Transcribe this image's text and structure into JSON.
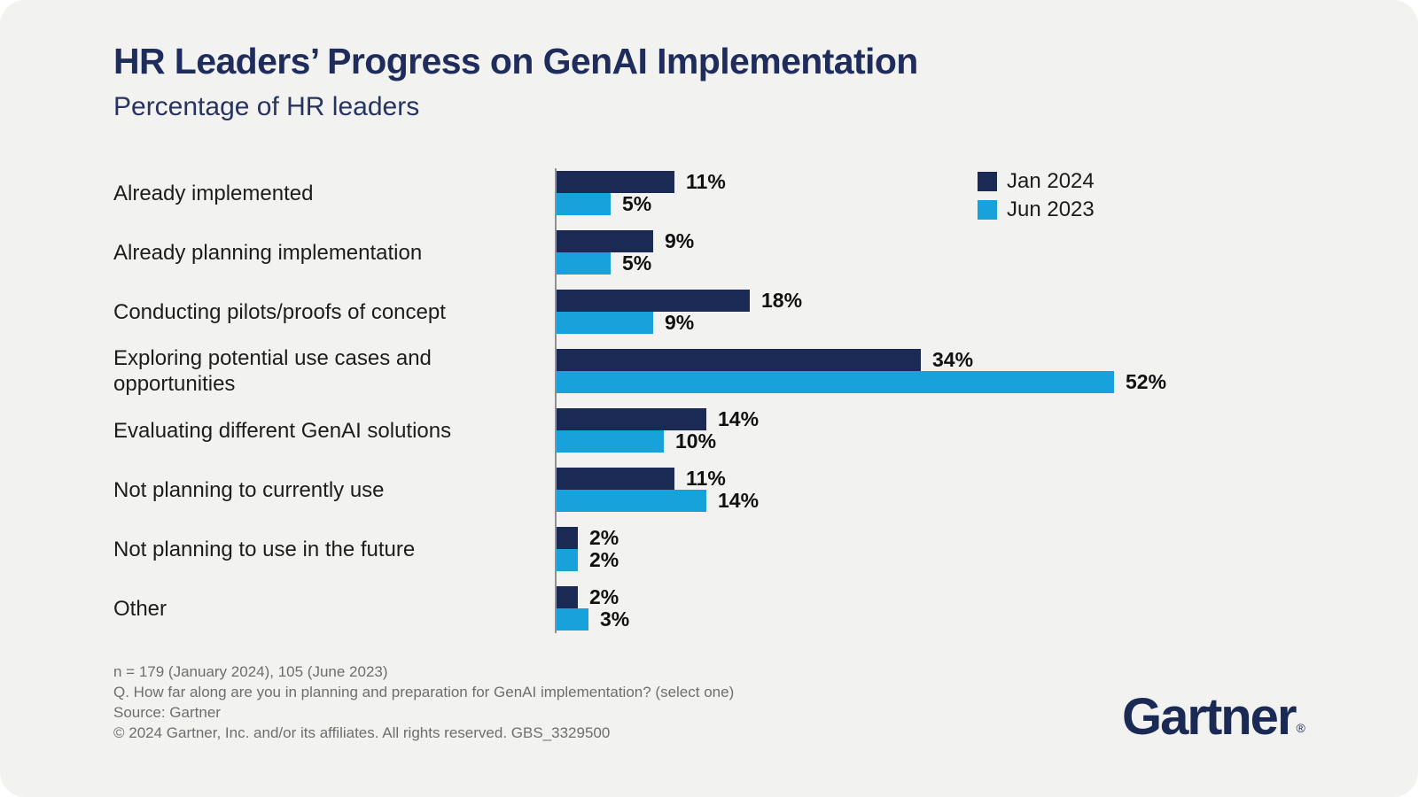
{
  "header": {
    "title": "HR Leaders’ Progress on GenAI Implementation",
    "subtitle": "Percentage of HR leaders"
  },
  "chart_data": {
    "type": "bar",
    "orientation": "horizontal",
    "title": "HR Leaders’ Progress on GenAI Implementation",
    "subtitle": "Percentage of HR leaders",
    "categories": [
      "Already implemented",
      "Already planning implementation",
      "Conducting pilots/proofs of concept",
      "Exploring potential use cases and opportunities",
      "Evaluating different GenAI solutions",
      "Not planning to currently use",
      "Not planning to use in the future",
      "Other"
    ],
    "series": [
      {
        "name": "Jan 2024",
        "color": "#1b2a55",
        "values": [
          11,
          9,
          18,
          34,
          14,
          11,
          2,
          2
        ]
      },
      {
        "name": "Jun 2023",
        "color": "#17a2dc",
        "values": [
          5,
          5,
          9,
          52,
          10,
          14,
          2,
          3
        ]
      }
    ],
    "value_suffix": "%",
    "xlim": [
      0,
      55
    ],
    "grid": false,
    "legend_position": "top-right"
  },
  "footer": {
    "lines": [
      "n = 179 (January 2024), 105 (June 2023)",
      "Q. How far along are you in planning and preparation for GenAI implementation? (select one)",
      "Source: Gartner",
      "© 2024 Gartner, Inc. and/or its affiliates. All rights reserved. GBS_3329500"
    ]
  },
  "branding": {
    "logo_text": "Gartner",
    "registered_mark": "®"
  },
  "colors": {
    "background": "#f2f2f0",
    "title_navy": "#1f2d5c",
    "axis_line": "#909090",
    "category_text": "#1d1d1b",
    "value_text": "#111111",
    "footer_text": "#6e6e6e",
    "logo_navy": "#1b2a55"
  }
}
